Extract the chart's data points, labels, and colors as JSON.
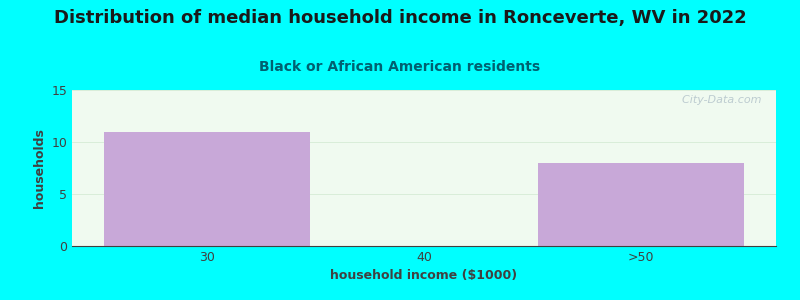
{
  "title": "Distribution of median household income in Ronceverte, WV in 2022",
  "subtitle": "Black or African American residents",
  "xlabel": "household income ($1000)",
  "ylabel": "households",
  "categories": [
    "30",
    "40",
    ">50"
  ],
  "values": [
    11,
    0,
    8
  ],
  "bar_color": "#C8A8D8",
  "background_color": "#00FFFF",
  "plot_bg_color": "#F0FAF0",
  "title_color": "#1a1a1a",
  "subtitle_color": "#006070",
  "axis_label_color": "#404040",
  "tick_color": "#404040",
  "ylim": [
    0,
    15
  ],
  "yticks": [
    0,
    5,
    10,
    15
  ],
  "title_fontsize": 13,
  "subtitle_fontsize": 10,
  "axis_label_fontsize": 9,
  "watermark": "  City-Data.com"
}
